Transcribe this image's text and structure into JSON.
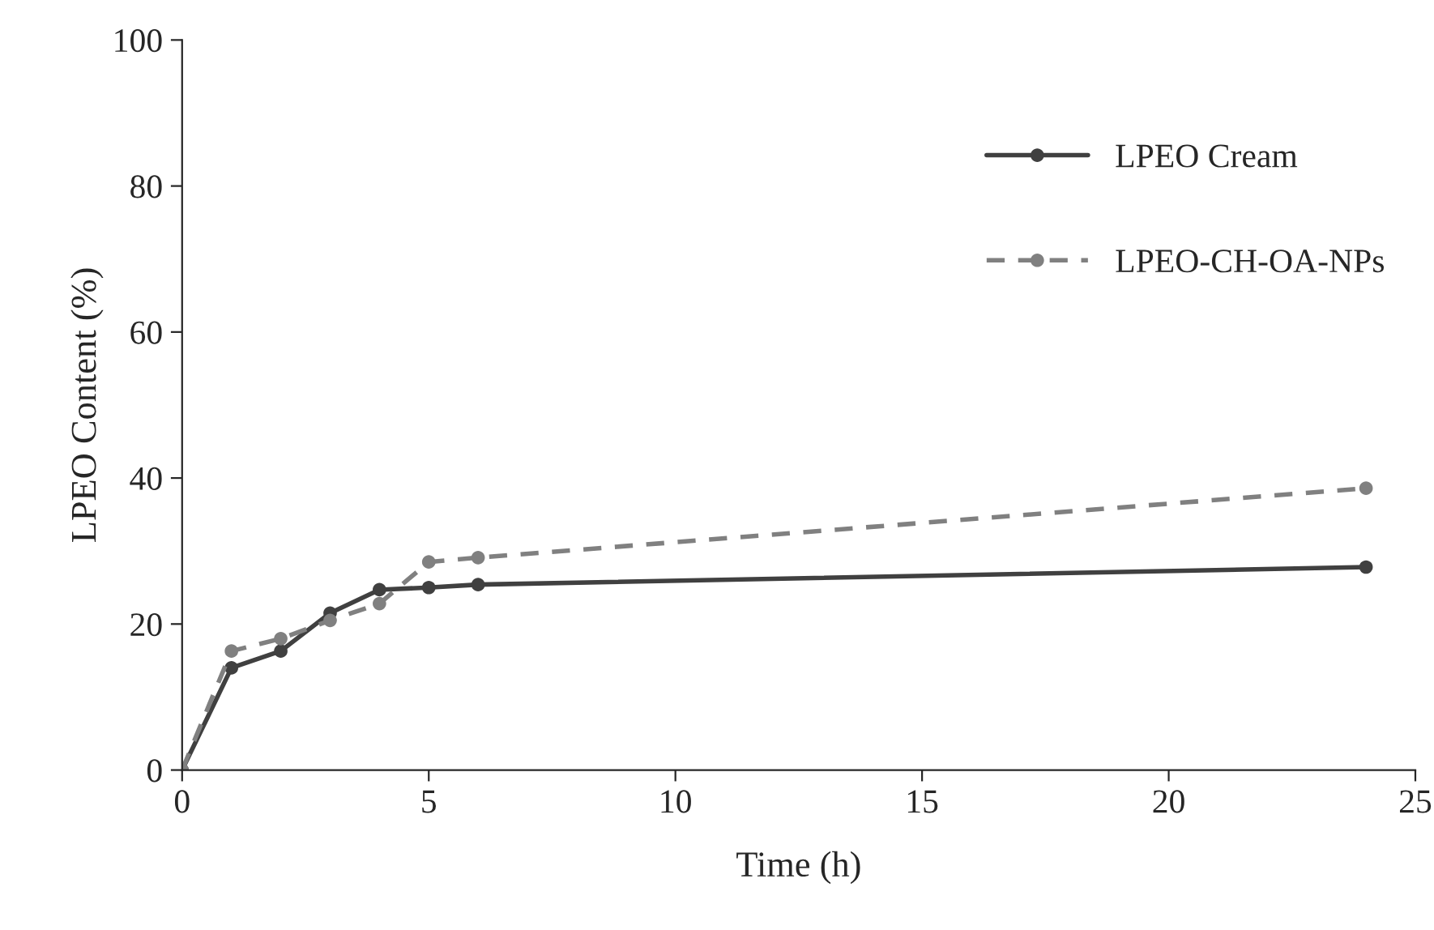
{
  "chart_data": {
    "type": "line",
    "xlabel": "Time (h)",
    "ylabel": "LPEO Content (%)",
    "xlim": [
      0,
      25
    ],
    "xticks": [
      0,
      5,
      10,
      15,
      20,
      25
    ],
    "ylim": [
      0,
      100
    ],
    "yticks": [
      0,
      20,
      40,
      60,
      80,
      100
    ],
    "grid": false,
    "legend": "top right",
    "marker": "circle",
    "series": [
      {
        "name": "LPEO Cream",
        "color": "#404040",
        "line_style": "solid",
        "x": [
          0,
          1,
          2,
          3,
          4,
          5,
          6,
          24
        ],
        "values": [
          0,
          14,
          16.3,
          21.5,
          24.7,
          25,
          25.4,
          27.8
        ]
      },
      {
        "name": "LPEO-CH-OA-NPs",
        "color": "#808080",
        "line_style": "dashed",
        "x": [
          0,
          1,
          2,
          3,
          4,
          5,
          6,
          24
        ],
        "values": [
          0,
          16.3,
          18,
          20.5,
          22.8,
          28.5,
          29.1,
          38.6
        ]
      }
    ]
  }
}
